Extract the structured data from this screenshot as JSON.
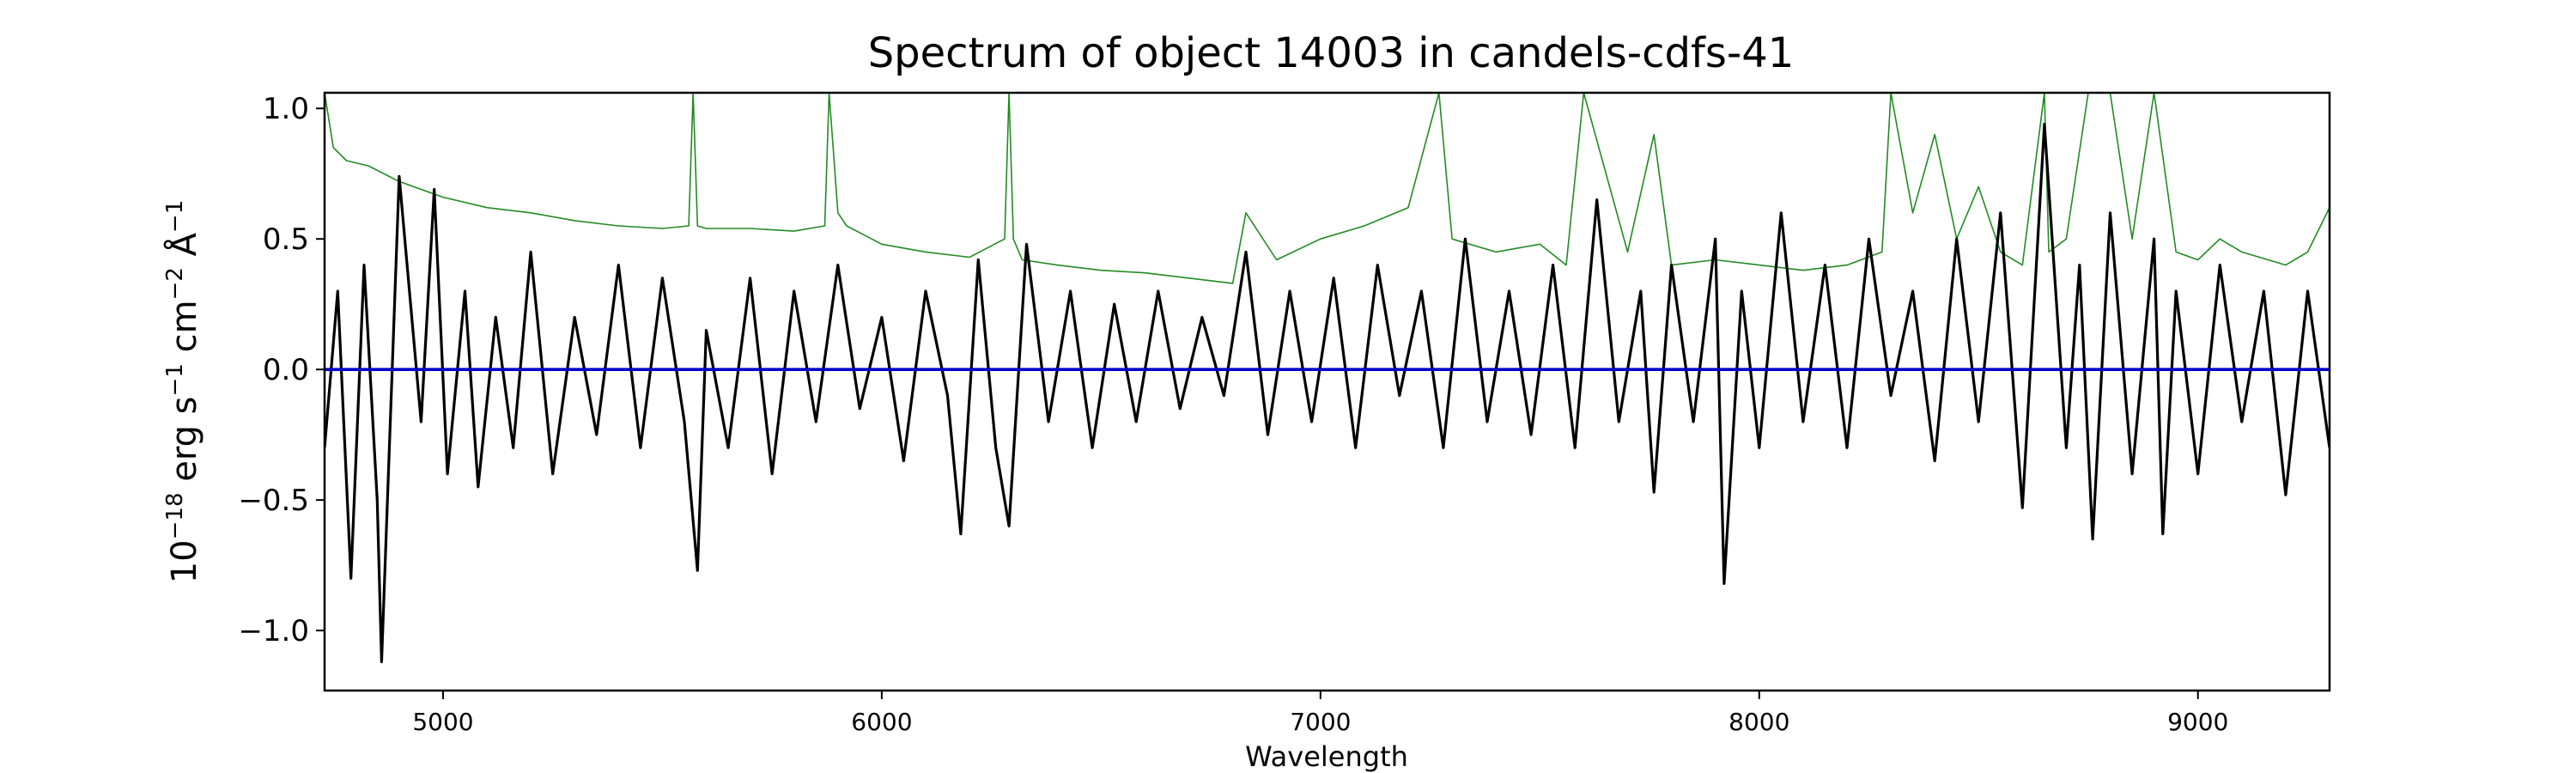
{
  "chart_data": {
    "type": "line",
    "title": "Spectrum of object 14003 in candels-cdfs-41",
    "xlabel": "Wavelength",
    "ylabel": {
      "base": "10",
      "exp1": "−18",
      "erg": " erg s",
      "exp2": "−1",
      "cm": " cm",
      "exp3": "−2",
      "ang": " Å",
      "exp4": "−1"
    },
    "xlim": [
      4730,
      9300
    ],
    "ylim": [
      -1.23,
      1.06
    ],
    "xticks": [
      5000,
      6000,
      7000,
      8000,
      9000
    ],
    "yticks": [
      -1.0,
      -0.5,
      0.0,
      0.5,
      1.0
    ],
    "ytick_labels": [
      "−1.0",
      "−0.5",
      "0.0",
      "0.5",
      "1.0"
    ],
    "grid": false,
    "colors": {
      "flux": "#000000",
      "error": "#228b22",
      "zero": "#0000cc"
    },
    "series": [
      {
        "role": "flux",
        "x": [
          4730,
          4760,
          4790,
          4820,
          4850,
          4860,
          4900,
          4950,
          4980,
          5010,
          5050,
          5080,
          5120,
          5160,
          5200,
          5250,
          5300,
          5350,
          5400,
          5450,
          5500,
          5550,
          5580,
          5600,
          5650,
          5700,
          5750,
          5800,
          5850,
          5900,
          5950,
          6000,
          6050,
          6100,
          6150,
          6180,
          6220,
          6260,
          6290,
          6330,
          6380,
          6430,
          6480,
          6530,
          6580,
          6630,
          6680,
          6730,
          6780,
          6830,
          6880,
          6930,
          6980,
          7030,
          7080,
          7130,
          7180,
          7230,
          7280,
          7330,
          7380,
          7430,
          7480,
          7530,
          7580,
          7630,
          7680,
          7730,
          7760,
          7800,
          7850,
          7900,
          7920,
          7960,
          8000,
          8050,
          8100,
          8150,
          8200,
          8250,
          8300,
          8350,
          8400,
          8450,
          8500,
          8550,
          8600,
          8650,
          8700,
          8730,
          8760,
          8800,
          8850,
          8900,
          8920,
          8950,
          9000,
          9050,
          9100,
          9150,
          9200,
          9250,
          9300
        ],
        "y": [
          -0.3,
          0.3,
          -0.8,
          0.4,
          -0.5,
          -1.12,
          0.74,
          -0.2,
          0.69,
          -0.4,
          0.3,
          -0.45,
          0.2,
          -0.3,
          0.45,
          -0.4,
          0.2,
          -0.25,
          0.4,
          -0.3,
          0.35,
          -0.2,
          -0.77,
          0.15,
          -0.3,
          0.35,
          -0.4,
          0.3,
          -0.2,
          0.4,
          -0.15,
          0.2,
          -0.35,
          0.3,
          -0.1,
          -0.63,
          0.42,
          -0.3,
          -0.6,
          0.48,
          -0.2,
          0.3,
          -0.3,
          0.25,
          -0.2,
          0.3,
          -0.15,
          0.2,
          -0.1,
          0.45,
          -0.25,
          0.3,
          -0.2,
          0.35,
          -0.3,
          0.4,
          -0.1,
          0.3,
          -0.3,
          0.5,
          -0.2,
          0.3,
          -0.25,
          0.4,
          -0.3,
          0.65,
          -0.2,
          0.3,
          -0.47,
          0.4,
          -0.2,
          0.5,
          -0.82,
          0.3,
          -0.3,
          0.6,
          -0.2,
          0.4,
          -0.3,
          0.5,
          -0.1,
          0.3,
          -0.35,
          0.5,
          -0.2,
          0.6,
          -0.53,
          0.94,
          -0.3,
          0.4,
          -0.65,
          0.6,
          -0.4,
          0.5,
          -0.63,
          0.3,
          -0.4,
          0.4,
          -0.2,
          0.3,
          -0.48,
          0.3,
          -0.3
        ]
      },
      {
        "role": "error",
        "x": [
          4730,
          4750,
          4780,
          4830,
          4900,
          5000,
          5100,
          5200,
          5300,
          5400,
          5500,
          5560,
          5570,
          5580,
          5600,
          5700,
          5800,
          5870,
          5880,
          5900,
          5920,
          6000,
          6100,
          6200,
          6280,
          6290,
          6300,
          6320,
          6400,
          6500,
          6600,
          6700,
          6800,
          6830,
          6900,
          7000,
          7100,
          7200,
          7270,
          7300,
          7400,
          7500,
          7560,
          7600,
          7700,
          7760,
          7800,
          7900,
          8000,
          8100,
          8200,
          8280,
          8300,
          8350,
          8400,
          8450,
          8500,
          8550,
          8600,
          8650,
          8660,
          8700,
          8750,
          8800,
          8850,
          8900,
          8950,
          9000,
          9050,
          9100,
          9200,
          9250,
          9300
        ],
        "y": [
          1.06,
          0.85,
          0.8,
          0.78,
          0.72,
          0.66,
          0.62,
          0.6,
          0.57,
          0.55,
          0.54,
          0.55,
          1.06,
          0.55,
          0.54,
          0.54,
          0.53,
          0.55,
          1.06,
          0.6,
          0.55,
          0.48,
          0.45,
          0.43,
          0.5,
          1.06,
          0.5,
          0.42,
          0.4,
          0.38,
          0.37,
          0.35,
          0.33,
          0.6,
          0.42,
          0.5,
          0.55,
          0.62,
          1.06,
          0.5,
          0.45,
          0.48,
          0.4,
          1.06,
          0.45,
          0.9,
          0.4,
          0.42,
          0.4,
          0.38,
          0.4,
          0.45,
          1.06,
          0.6,
          0.9,
          0.5,
          0.7,
          0.45,
          0.4,
          1.06,
          0.45,
          0.5,
          1.06,
          1.06,
          0.5,
          1.06,
          0.45,
          0.42,
          0.5,
          0.45,
          0.4,
          0.45,
          0.62
        ]
      },
      {
        "role": "zero",
        "x": [
          4730,
          9300
        ],
        "y": [
          0,
          0
        ]
      }
    ]
  }
}
